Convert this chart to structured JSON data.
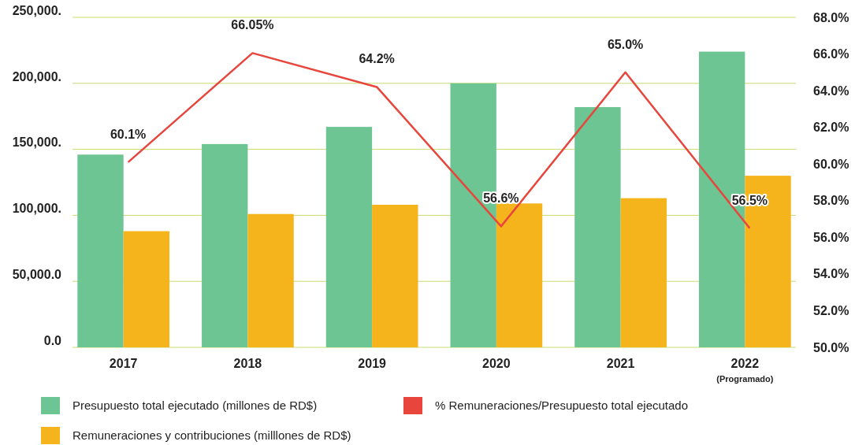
{
  "chart_data": {
    "type": "bar",
    "categories": [
      "2017",
      "2018",
      "2019",
      "2020",
      "2021",
      "2022"
    ],
    "annotations": [
      "(Programado)"
    ],
    "series": [
      {
        "name": "Presupuesto total ejecutado (millones de RD$)",
        "color": "#6cc592",
        "values": [
          146000,
          154000,
          167000,
          200000,
          182000,
          224000
        ]
      },
      {
        "name": "Remuneraciones y contribuciones (milllones de RD$)",
        "color": "#f5b31c",
        "values": [
          88000,
          101000,
          108000,
          109000,
          113000,
          130000
        ]
      },
      {
        "name": "% Remuneraciones/Presupuesto total ejecutado",
        "type": "line",
        "axis": "y2",
        "color": "#e8453c",
        "values": [
          60.1,
          66.05,
          64.2,
          56.6,
          65.0,
          56.5
        ],
        "value_labels": [
          "60.1%",
          "66.05%",
          "64.2%",
          "56.6%",
          "65.0%",
          "56.5%"
        ]
      }
    ],
    "ylim": [
      0,
      250000
    ],
    "yticks": [
      {
        "value": 0,
        "label": "0.0"
      },
      {
        "value": 50000,
        "label": "50,000.0"
      },
      {
        "value": 100000,
        "label": "100,000."
      },
      {
        "value": 150000,
        "label": "150,000."
      },
      {
        "value": 200000,
        "label": "200,000."
      },
      {
        "value": 250000,
        "label": "250,000."
      }
    ],
    "y2lim": [
      50,
      68
    ],
    "y2ticks": [
      {
        "value": 50,
        "label": "50.0%"
      },
      {
        "value": 52,
        "label": "52.0%"
      },
      {
        "value": 54,
        "label": "54.0%"
      },
      {
        "value": 56,
        "label": "56.0%"
      },
      {
        "value": 58,
        "label": "58.0%"
      },
      {
        "value": 60,
        "label": "60.0%"
      },
      {
        "value": 62,
        "label": "62.0%"
      },
      {
        "value": 64,
        "label": "64.0%"
      },
      {
        "value": 66,
        "label": "66.0%"
      },
      {
        "value": 68,
        "label": "68.0%"
      }
    ],
    "grid": "y",
    "legend": "bottom",
    "marker": "none",
    "line_style": "solid"
  }
}
